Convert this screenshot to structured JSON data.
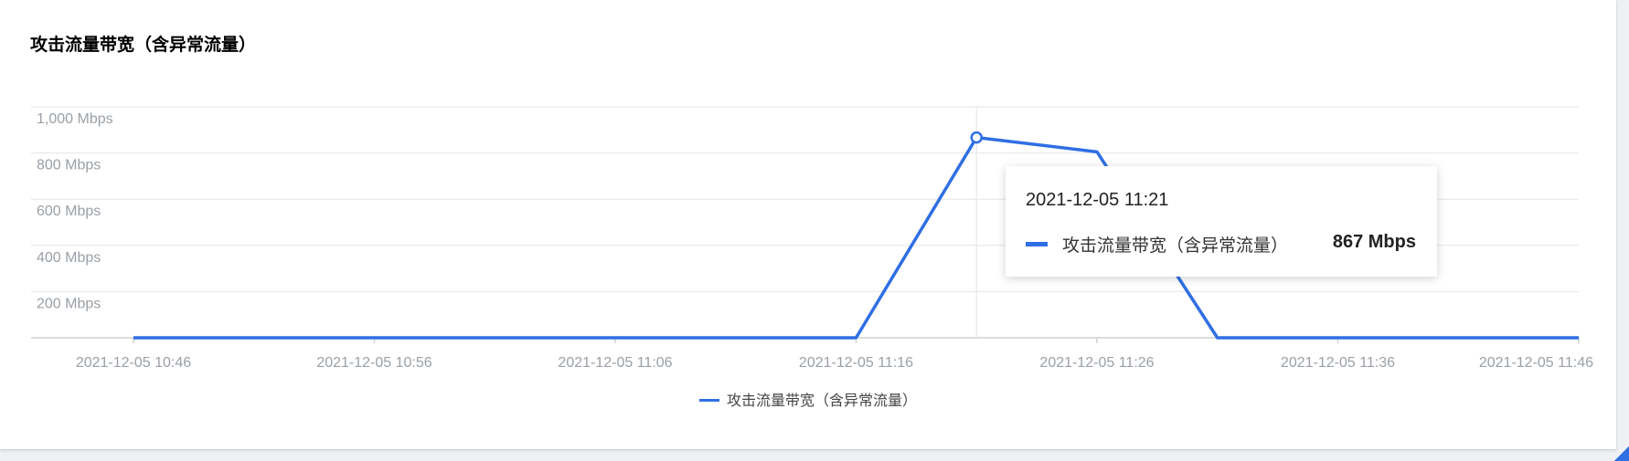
{
  "card": {
    "title": "攻击流量带宽（含异常流量）"
  },
  "chart_data": {
    "type": "line",
    "title": "攻击流量带宽（含异常流量）",
    "xlabel": "",
    "ylabel": "",
    "x": [
      "2021-12-05 10:46",
      "2021-12-05 10:51",
      "2021-12-05 10:56",
      "2021-12-05 11:01",
      "2021-12-05 11:06",
      "2021-12-05 11:11",
      "2021-12-05 11:16",
      "2021-12-05 11:21",
      "2021-12-05 11:26",
      "2021-12-05 11:31",
      "2021-12-05 11:36",
      "2021-12-05 11:41",
      "2021-12-05 11:46"
    ],
    "xticks": [
      "2021-12-05 10:46",
      "2021-12-05 10:56",
      "2021-12-05 11:06",
      "2021-12-05 11:16",
      "2021-12-05 11:26",
      "2021-12-05 11:36",
      "2021-12-05 11:46"
    ],
    "series": [
      {
        "name": "攻击流量带宽（含异常流量）",
        "color": "#2f6fe4",
        "values": [
          0,
          0,
          0,
          0,
          0,
          0,
          0,
          867,
          805,
          0,
          0,
          0,
          0
        ]
      }
    ],
    "yticks": [
      "200 Mbps",
      "400 Mbps",
      "600 Mbps",
      "800 Mbps",
      "1,000 Mbps"
    ],
    "ytick_values": [
      200,
      400,
      600,
      800,
      1000
    ],
    "ylim": [
      0,
      1000
    ],
    "unit": "Mbps",
    "grid": true,
    "legend": "bottom-center",
    "highlight_index": 7
  },
  "tooltip": {
    "time": "2021-12-05 11:21",
    "series_name": "攻击流量带宽（含异常流量）",
    "value": "867 Mbps"
  },
  "legend": {
    "label": "攻击流量带宽（含异常流量）"
  }
}
